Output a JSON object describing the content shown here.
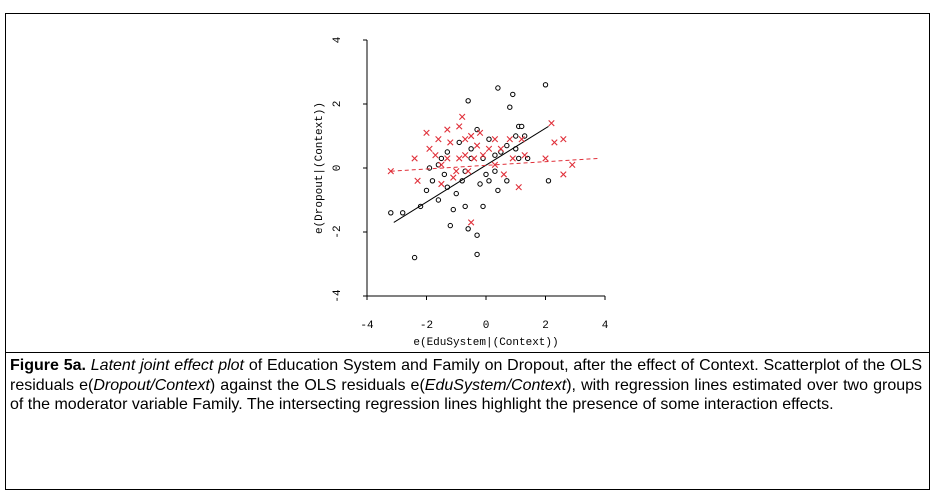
{
  "chart_data": {
    "type": "scatter",
    "xlabel": "e(EduSystem|(Context))",
    "ylabel": "e(Dropout|(Context))",
    "xlim": [
      -4,
      4
    ],
    "ylim": [
      -4,
      4
    ],
    "xticks": [
      -4,
      -2,
      0,
      2,
      4
    ],
    "yticks": [
      -4,
      -2,
      0,
      2,
      4
    ],
    "series": [
      {
        "marker": "circle",
        "color": "#000000",
        "x": [
          -3.2,
          -2.8,
          -2.4,
          -2.2,
          -2.0,
          -1.9,
          -1.8,
          -1.6,
          -1.6,
          -1.5,
          -1.4,
          -1.3,
          -1.3,
          -1.2,
          -1.1,
          -1.0,
          -0.9,
          -0.8,
          -0.7,
          -0.7,
          -0.6,
          -0.5,
          -0.5,
          -0.3,
          -0.3,
          -0.3,
          -0.2,
          -0.1,
          -0.1,
          0,
          0.1,
          0.1,
          0.3,
          0.3,
          0.4,
          0.4,
          0.5,
          0.7,
          0.7,
          0.8,
          0.9,
          1.0,
          1.0,
          1.1,
          1.1,
          1.2,
          1.3,
          1.4,
          2.0,
          2.1,
          -0.6
        ],
        "values": [
          -1.4,
          -1.4,
          -2.8,
          -1.2,
          -0.7,
          0,
          -0.4,
          -1.0,
          0.1,
          0.3,
          -0.2,
          -0.6,
          0.5,
          -1.8,
          -1.3,
          -0.8,
          0.8,
          -0.4,
          -0.1,
          -1.2,
          -1.9,
          0.6,
          0.3,
          -2.1,
          -2.7,
          1.2,
          -0.5,
          -1.2,
          0.3,
          -0.2,
          0.9,
          -0.4,
          -0.1,
          0.4,
          -0.7,
          2.5,
          0.5,
          0.7,
          -0.4,
          1.9,
          2.3,
          0.6,
          1.0,
          1.3,
          0.3,
          1.3,
          1.0,
          0.3,
          2.6,
          -0.4,
          2.1
        ],
        "fit": {
          "dashed": false,
          "x": [
            -3.1,
            2.1
          ],
          "y": [
            -1.7,
            1.3
          ]
        }
      },
      {
        "marker": "x",
        "color": "#e0303a",
        "x": [
          -3.2,
          -2.4,
          -2.3,
          -2.0,
          -1.9,
          -1.7,
          -1.6,
          -1.5,
          -1.5,
          -1.3,
          -1.3,
          -1.2,
          -1.1,
          -1.0,
          -0.9,
          -0.9,
          -0.8,
          -0.7,
          -0.7,
          -0.6,
          -0.5,
          -0.5,
          -0.4,
          -0.3,
          -0.2,
          -0.1,
          0.1,
          0.3,
          0.3,
          0.5,
          0.6,
          0.8,
          0.9,
          1.1,
          1.2,
          1.3,
          2.0,
          2.2,
          2.3,
          2.6,
          2.6,
          2.9
        ],
        "values": [
          -0.1,
          0.3,
          -0.4,
          1.1,
          0.6,
          0.4,
          0.9,
          0.1,
          -0.5,
          1.2,
          0.3,
          0.8,
          -0.3,
          -0.1,
          1.3,
          0.3,
          1.6,
          0.9,
          0.4,
          -0.1,
          -1.7,
          1.0,
          0.3,
          0.7,
          1.1,
          0.4,
          0.6,
          0.9,
          0.1,
          0.6,
          -0.2,
          0.9,
          0.3,
          -0.6,
          0.9,
          0.4,
          0.3,
          1.4,
          0.8,
          0.9,
          -0.2,
          0.1
        ],
        "fit": {
          "dashed": true,
          "x": [
            -3.2,
            3.8
          ],
          "y": [
            -0.1,
            0.3
          ]
        }
      }
    ]
  },
  "caption": {
    "segments": [
      "Figure 5a.",
      "Latent joint effect plot",
      "of Education System and Family on Dropout, after the effect of Context. Scatterplot of the OLS residuals e(",
      "Dropout/Context",
      ") against the OLS residuals e(",
      "EduSystem/Context",
      "), with regression lines estimated over two groups of the moderator variable Family. The intersecting regression lines highlight the presence of some interaction effects."
    ]
  }
}
